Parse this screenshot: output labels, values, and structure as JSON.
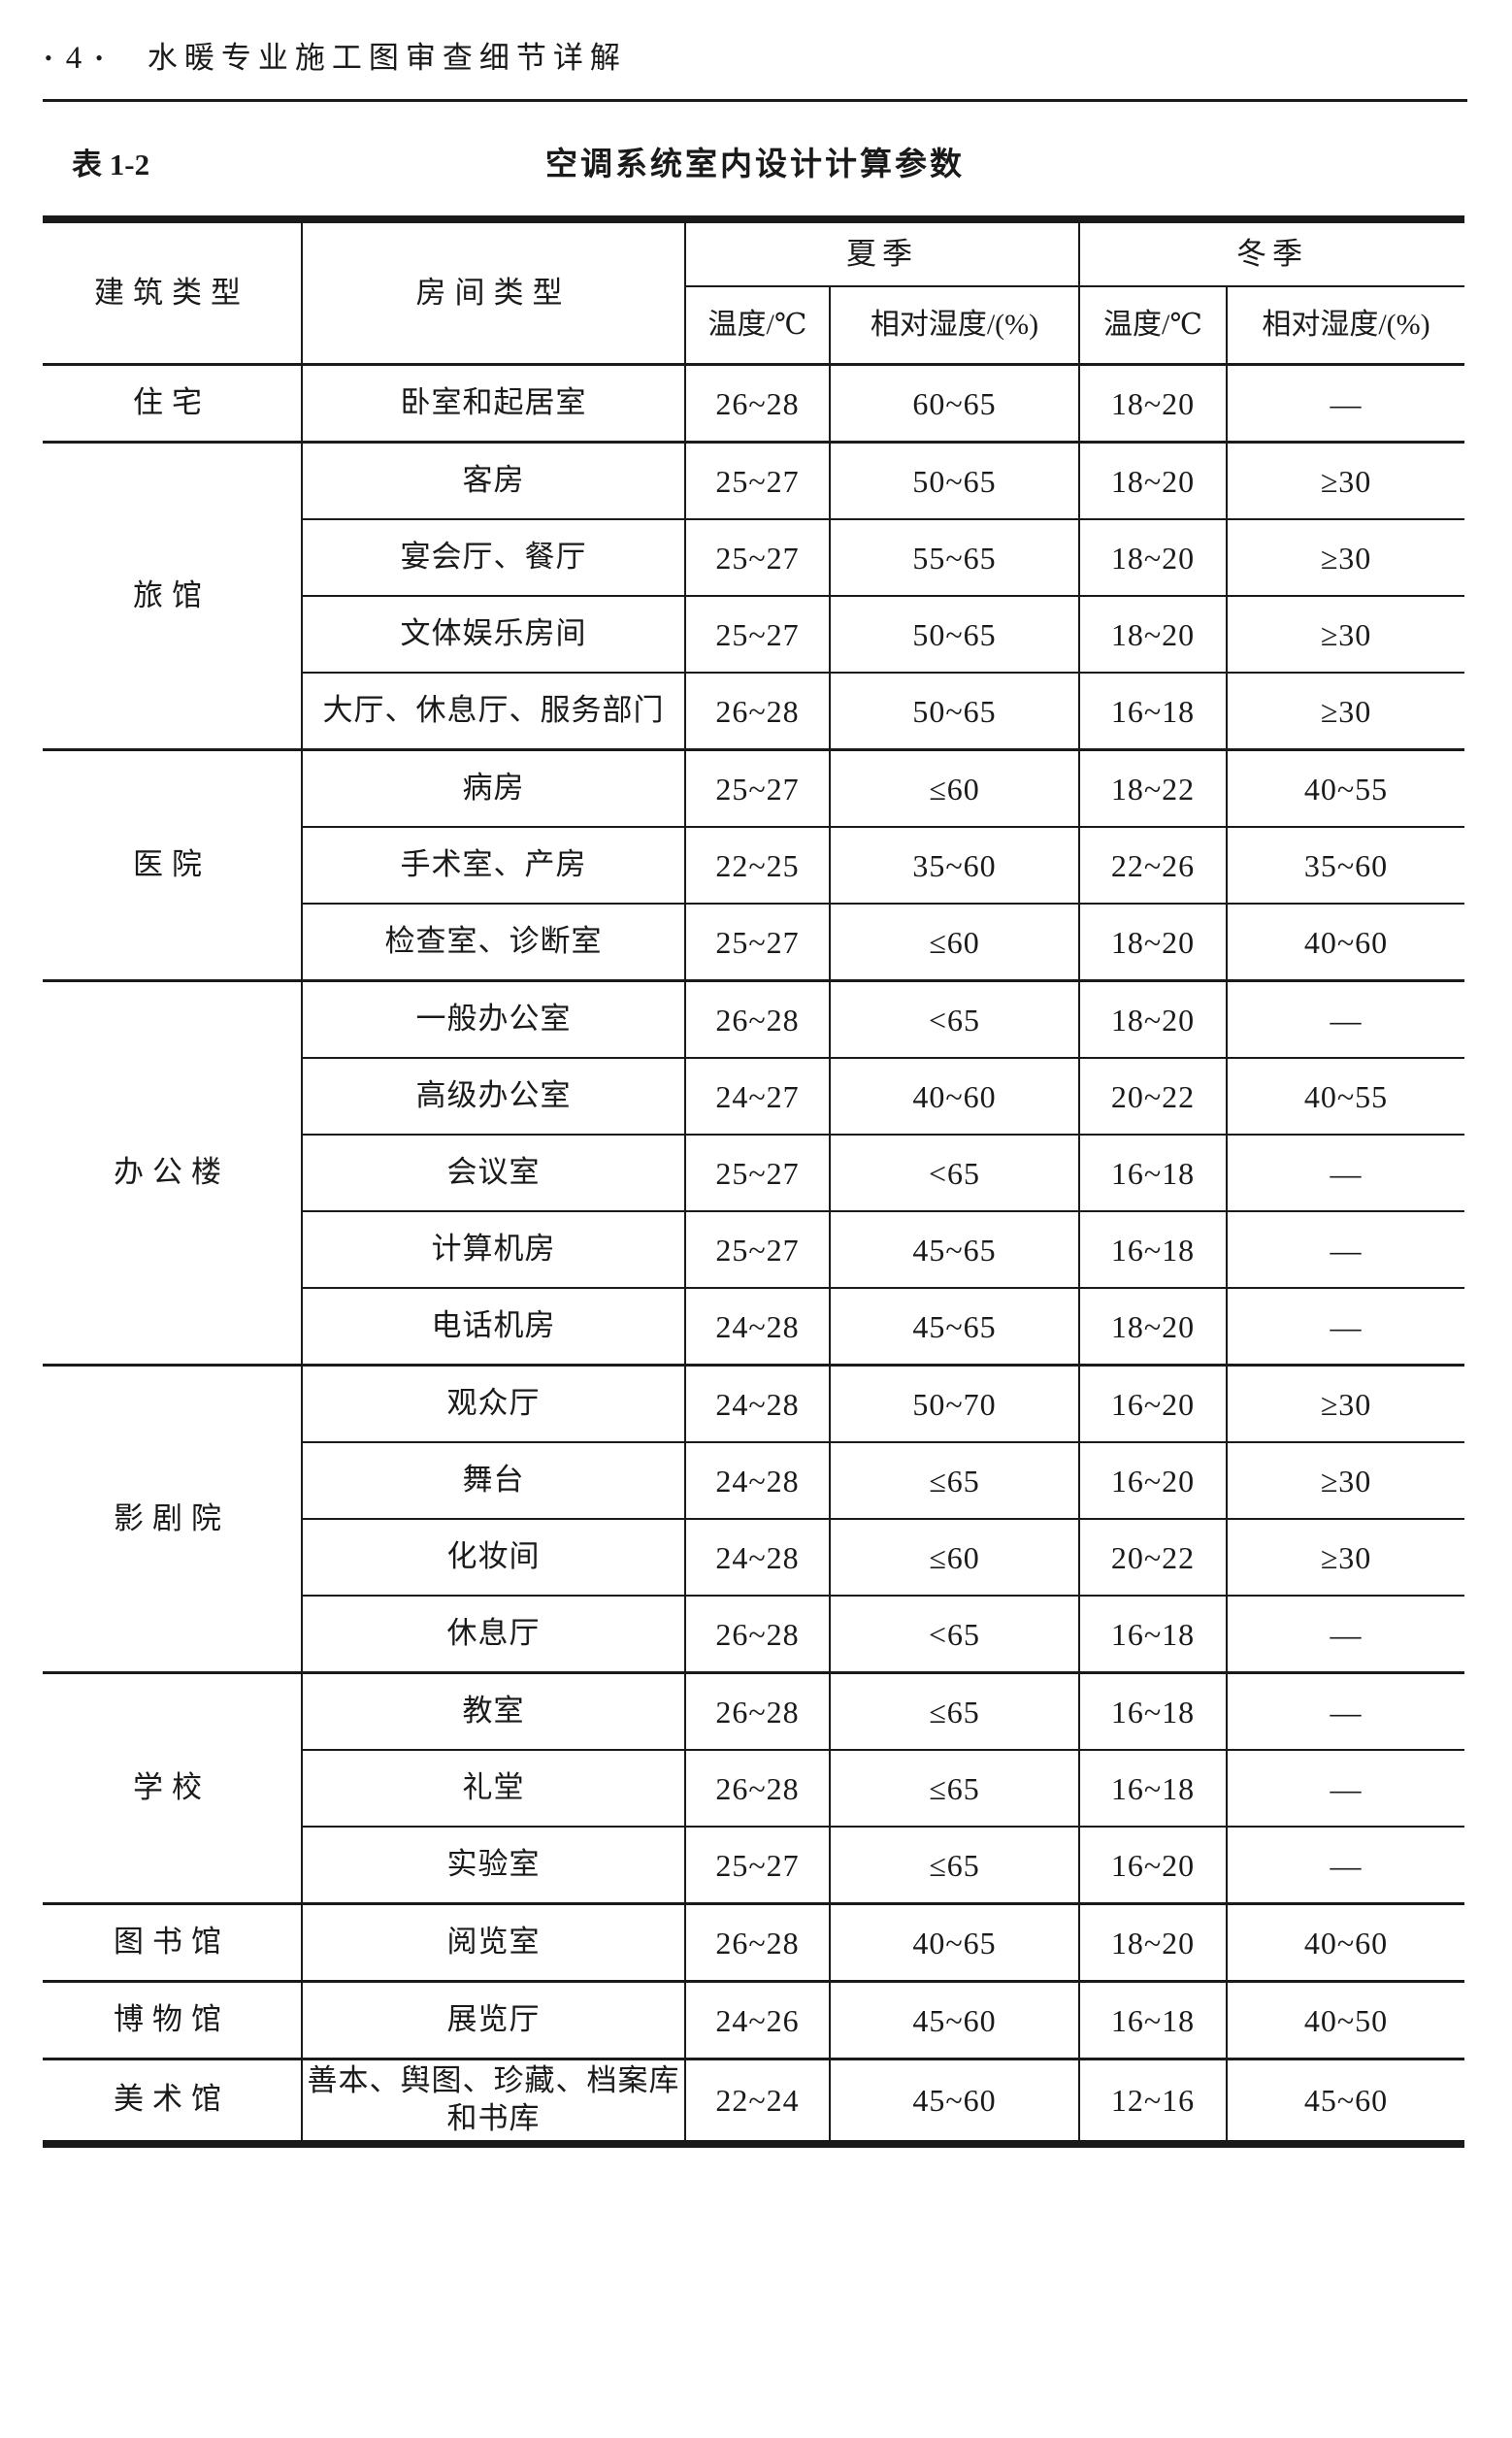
{
  "page_header": {
    "bullet": "•",
    "page_number": "4",
    "book_title": "水暖专业施工图审查细节详解"
  },
  "table_caption": {
    "label": "表 1-2",
    "title": "空调系统室内设计计算参数"
  },
  "table": {
    "headers": {
      "building": "建筑类型",
      "room": "房间类型",
      "summer": "夏季",
      "winter": "冬季",
      "temp": "温度/℃",
      "humidity": "相对湿度/(%)"
    },
    "groups": [
      {
        "building": "住宅",
        "rows": [
          {
            "room": "卧室和起居室",
            "summer_temp": "26~28",
            "summer_humidity": "60~65",
            "winter_temp": "18~20",
            "winter_humidity": "—"
          }
        ]
      },
      {
        "building": "旅馆",
        "rows": [
          {
            "room": "客房",
            "summer_temp": "25~27",
            "summer_humidity": "50~65",
            "winter_temp": "18~20",
            "winter_humidity": "≥30"
          },
          {
            "room": "宴会厅、餐厅",
            "summer_temp": "25~27",
            "summer_humidity": "55~65",
            "winter_temp": "18~20",
            "winter_humidity": "≥30"
          },
          {
            "room": "文体娱乐房间",
            "summer_temp": "25~27",
            "summer_humidity": "50~65",
            "winter_temp": "18~20",
            "winter_humidity": "≥30"
          },
          {
            "room": "大厅、休息厅、服务部门",
            "summer_temp": "26~28",
            "summer_humidity": "50~65",
            "winter_temp": "16~18",
            "winter_humidity": "≥30"
          }
        ]
      },
      {
        "building": "医院",
        "rows": [
          {
            "room": "病房",
            "summer_temp": "25~27",
            "summer_humidity": "≤60",
            "winter_temp": "18~22",
            "winter_humidity": "40~55"
          },
          {
            "room": "手术室、产房",
            "summer_temp": "22~25",
            "summer_humidity": "35~60",
            "winter_temp": "22~26",
            "winter_humidity": "35~60"
          },
          {
            "room": "检查室、诊断室",
            "summer_temp": "25~27",
            "summer_humidity": "≤60",
            "winter_temp": "18~20",
            "winter_humidity": "40~60"
          }
        ]
      },
      {
        "building": "办公楼",
        "rows": [
          {
            "room": "一般办公室",
            "summer_temp": "26~28",
            "summer_humidity": "<65",
            "winter_temp": "18~20",
            "winter_humidity": "—"
          },
          {
            "room": "高级办公室",
            "summer_temp": "24~27",
            "summer_humidity": "40~60",
            "winter_temp": "20~22",
            "winter_humidity": "40~55"
          },
          {
            "room": "会议室",
            "summer_temp": "25~27",
            "summer_humidity": "<65",
            "winter_temp": "16~18",
            "winter_humidity": "—"
          },
          {
            "room": "计算机房",
            "summer_temp": "25~27",
            "summer_humidity": "45~65",
            "winter_temp": "16~18",
            "winter_humidity": "—"
          },
          {
            "room": "电话机房",
            "summer_temp": "24~28",
            "summer_humidity": "45~65",
            "winter_temp": "18~20",
            "winter_humidity": "—"
          }
        ]
      },
      {
        "building": "影剧院",
        "rows": [
          {
            "room": "观众厅",
            "summer_temp": "24~28",
            "summer_humidity": "50~70",
            "winter_temp": "16~20",
            "winter_humidity": "≥30"
          },
          {
            "room": "舞台",
            "summer_temp": "24~28",
            "summer_humidity": "≤65",
            "winter_temp": "16~20",
            "winter_humidity": "≥30"
          },
          {
            "room": "化妆间",
            "summer_temp": "24~28",
            "summer_humidity": "≤60",
            "winter_temp": "20~22",
            "winter_humidity": "≥30"
          },
          {
            "room": "休息厅",
            "summer_temp": "26~28",
            "summer_humidity": "<65",
            "winter_temp": "16~18",
            "winter_humidity": "—"
          }
        ]
      },
      {
        "building": "学校",
        "rows": [
          {
            "room": "教室",
            "summer_temp": "26~28",
            "summer_humidity": "≤65",
            "winter_temp": "16~18",
            "winter_humidity": "—"
          },
          {
            "room": "礼堂",
            "summer_temp": "26~28",
            "summer_humidity": "≤65",
            "winter_temp": "16~18",
            "winter_humidity": "—"
          },
          {
            "room": "实验室",
            "summer_temp": "25~27",
            "summer_humidity": "≤65",
            "winter_temp": "16~20",
            "winter_humidity": "—"
          }
        ]
      },
      {
        "building": "图书馆",
        "rows": [
          {
            "room": "阅览室",
            "summer_temp": "26~28",
            "summer_humidity": "40~65",
            "winter_temp": "18~20",
            "winter_humidity": "40~60"
          }
        ]
      },
      {
        "building": "博物馆",
        "rows": [
          {
            "room": "展览厅",
            "summer_temp": "24~26",
            "summer_humidity": "45~60",
            "winter_temp": "16~18",
            "winter_humidity": "40~50"
          }
        ]
      },
      {
        "building": "美术馆",
        "rows": [
          {
            "room": "善本、舆图、珍藏、档案库和书库",
            "summer_temp": "22~24",
            "summer_humidity": "45~60",
            "winter_temp": "12~16",
            "winter_humidity": "45~60"
          }
        ]
      }
    ]
  },
  "colors": {
    "ink": "#1a1a1a",
    "paper": "#ffffff"
  }
}
